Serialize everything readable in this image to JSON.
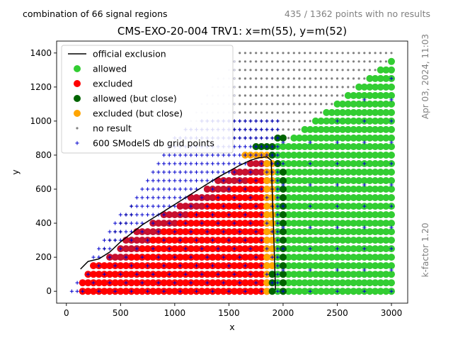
{
  "header": {
    "left_note": "combination of 66 signal regions",
    "right_note": "435 / 1362 points with no results"
  },
  "side_notes": {
    "date": "Apr 03, 2024, 11:03",
    "kfactor": "k-factor 1.20"
  },
  "colors": {
    "allowed": "#32cd32",
    "excluded": "#ff0000",
    "allowed_close": "#006400",
    "excluded_close": "#ffa500",
    "no_result": "#808080",
    "grid_points": "#0000cd",
    "exclusion_line": "#000000",
    "crimson_overlap": "#c8102e"
  },
  "chart_data": {
    "type": "scatter",
    "title": "CMS-EXO-20-004 TRV1: x=m(55), y=m(52)",
    "xlabel": "x",
    "ylabel": "y",
    "xlim": [
      -90,
      3150
    ],
    "ylim": [
      -70,
      1470
    ],
    "xticks": [
      0,
      500,
      1000,
      1500,
      2000,
      2500,
      3000
    ],
    "yticks": [
      0,
      200,
      400,
      600,
      800,
      1000,
      1200,
      1400
    ],
    "legend_position": "upper-left",
    "grid": false,
    "legend": [
      {
        "label": "official exclusion",
        "kind": "line",
        "color": "#000000"
      },
      {
        "label": "allowed",
        "kind": "dot",
        "color": "#32cd32"
      },
      {
        "label": "excluded",
        "kind": "dot",
        "color": "#ff0000"
      },
      {
        "label": "allowed (but close)",
        "kind": "dot",
        "color": "#006400"
      },
      {
        "label": "excluded (but close)",
        "kind": "dot",
        "color": "#ffa500"
      },
      {
        "label": "no result",
        "kind": "small",
        "color": "#808080"
      },
      {
        "label": "600 SModelS db grid points",
        "kind": "plus",
        "color": "#0000cd"
      }
    ],
    "official_exclusion": [
      [
        130,
        130
      ],
      [
        200,
        175
      ],
      [
        300,
        190
      ],
      [
        400,
        230
      ],
      [
        500,
        290
      ],
      [
        600,
        340
      ],
      [
        700,
        390
      ],
      [
        800,
        430
      ],
      [
        900,
        470
      ],
      [
        1000,
        510
      ],
      [
        1100,
        550
      ],
      [
        1200,
        590
      ],
      [
        1300,
        630
      ],
      [
        1400,
        670
      ],
      [
        1500,
        705
      ],
      [
        1600,
        740
      ],
      [
        1700,
        770
      ],
      [
        1780,
        785
      ],
      [
        1850,
        790
      ],
      [
        1890,
        770
      ],
      [
        1910,
        400
      ],
      [
        1930,
        10
      ]
    ],
    "series": [
      {
        "name": "allowed",
        "color": "#32cd32",
        "regions": [
          {
            "x_from": 2050,
            "x_to": 3000,
            "x_step": 50,
            "y_from": 0,
            "y_to": 880,
            "y_step": 50
          },
          {
            "x_from": 1950,
            "x_to": 2000,
            "x_step": 50,
            "y_from": 0,
            "y_to": 850,
            "y_step": 50
          },
          {
            "x_from": 2050,
            "x_to": 3000,
            "x_step": 50,
            "y_from": 900,
            "y_to": 1400,
            "y_step": 50,
            "y_max_rule": "y <= 0.5*x - 130"
          }
        ]
      },
      {
        "name": "excluded",
        "color": "#ff0000",
        "regions": [
          {
            "x_from": 100,
            "x_to": 1850,
            "x_step": 50,
            "y_from": 0,
            "y_to": 750,
            "y_step": 50,
            "y_max_rule": "below official exclusion"
          }
        ]
      },
      {
        "name": "allowed (but close)",
        "color": "#006400",
        "points": [
          [
            1750,
            850
          ],
          [
            1800,
            850
          ],
          [
            1850,
            850
          ],
          [
            1900,
            850
          ],
          [
            1900,
            800
          ],
          [
            1950,
            750
          ],
          [
            2000,
            700
          ],
          [
            2000,
            650
          ],
          [
            2000,
            600
          ],
          [
            2000,
            550
          ],
          [
            2000,
            500
          ],
          [
            2000,
            450
          ],
          [
            2000,
            400
          ],
          [
            2000,
            350
          ],
          [
            2000,
            300
          ],
          [
            2000,
            250
          ],
          [
            2000,
            200
          ],
          [
            2000,
            150
          ],
          [
            2000,
            100
          ],
          [
            2000,
            50
          ],
          [
            2000,
            0
          ],
          [
            1900,
            100
          ],
          [
            1900,
            50
          ],
          [
            1900,
            0
          ],
          [
            1950,
            900
          ],
          [
            2000,
            900
          ]
        ]
      },
      {
        "name": "excluded (but close)",
        "color": "#ffa500",
        "points": [
          [
            1650,
            800
          ],
          [
            1700,
            800
          ],
          [
            1750,
            800
          ],
          [
            1800,
            800
          ],
          [
            1850,
            800
          ],
          [
            1850,
            750
          ],
          [
            1850,
            700
          ],
          [
            1850,
            650
          ],
          [
            1850,
            600
          ],
          [
            1850,
            550
          ],
          [
            1850,
            500
          ],
          [
            1850,
            450
          ],
          [
            1850,
            400
          ],
          [
            1850,
            350
          ],
          [
            1850,
            300
          ],
          [
            1850,
            250
          ],
          [
            1850,
            200
          ],
          [
            1850,
            150
          ],
          [
            1850,
            100
          ],
          [
            1850,
            50
          ],
          [
            1850,
            0
          ],
          [
            1900,
            750
          ],
          [
            1900,
            700
          ],
          [
            1900,
            650
          ],
          [
            1900,
            600
          ],
          [
            1900,
            550
          ],
          [
            1900,
            500
          ],
          [
            1900,
            450
          ],
          [
            1900,
            400
          ],
          [
            1900,
            350
          ],
          [
            1900,
            300
          ],
          [
            1900,
            250
          ],
          [
            1900,
            200
          ],
          [
            1900,
            150
          ]
        ]
      },
      {
        "name": "no result",
        "color": "#808080",
        "regions": [
          {
            "x_from": 1550,
            "x_to": 3000,
            "x_step": 50,
            "y_from": 900,
            "y_to": 1400,
            "y_step": 50,
            "y_max_rule": "above allowed upper edge"
          },
          {
            "x_from": 50,
            "x_to": 1600,
            "x_step": 50,
            "y_from": 0,
            "y_to": 1400,
            "y_step": 50,
            "y_max_rule": "diagonal band y ~ 0.93*x - 50"
          }
        ]
      },
      {
        "name": "600 SModelS db grid points",
        "color": "#0000cd",
        "regions": [
          {
            "x_from": 50,
            "x_to": 1950,
            "x_step": 50,
            "y_from": 0,
            "y_to": 1400,
            "y_step": 50,
            "y_max_rule": "y <= 0.9*x"
          },
          {
            "x_from": 2000,
            "x_to": 3000,
            "x_step": 250,
            "y_from": 0,
            "y_to": 1400,
            "y_step": 125
          }
        ]
      }
    ]
  }
}
